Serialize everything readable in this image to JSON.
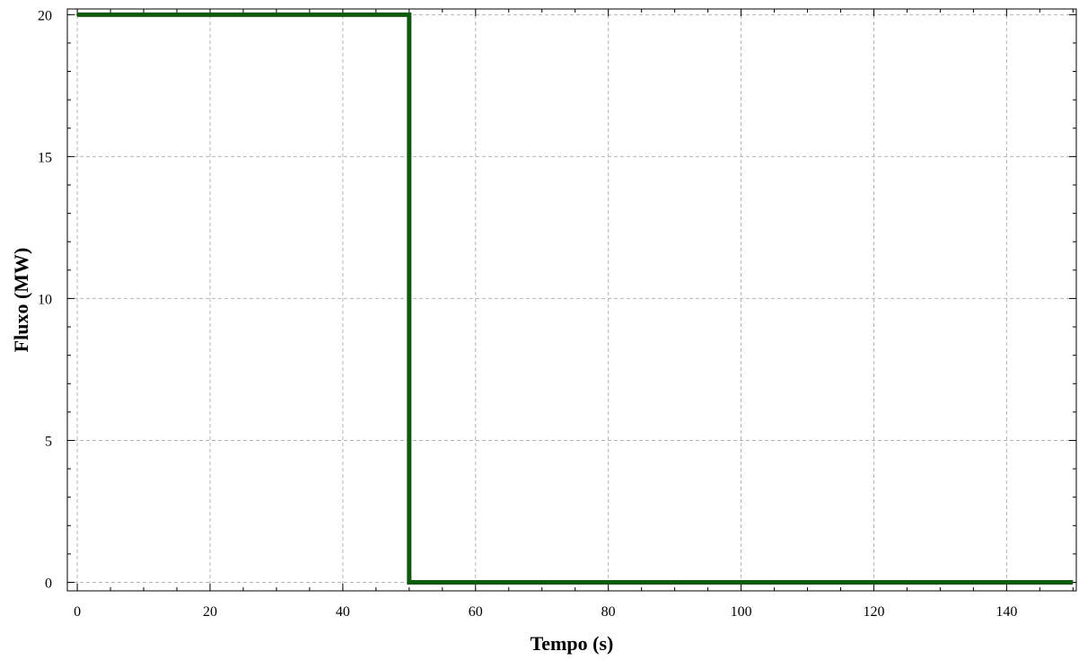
{
  "chart_data": {
    "type": "line",
    "title": "",
    "xlabel": "Tempo (s)",
    "ylabel": "Fluxo (MW)",
    "xlim": [
      -1.5,
      150.5
    ],
    "ylim": [
      -0.3,
      20.2
    ],
    "x_ticks": [
      0,
      20,
      40,
      60,
      80,
      100,
      120,
      140
    ],
    "y_ticks": [
      0,
      5,
      10,
      15,
      20
    ],
    "x_minor_step": 5,
    "y_minor_step": 1,
    "grid": true,
    "legend": "none",
    "series": [
      {
        "color": "#0f5a0f",
        "x": [
          0,
          50,
          50,
          150
        ],
        "y": [
          20,
          20,
          0,
          0
        ]
      }
    ]
  }
}
